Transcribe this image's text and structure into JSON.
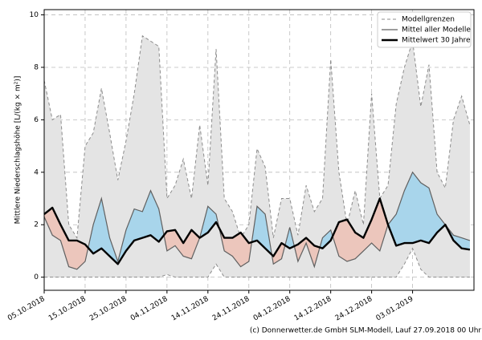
{
  "chart_data": {
    "type": "ensemble-band",
    "ylabel": "Mittlere Niederschlagshöhe [L/(kg × m²)]",
    "footer": "(c) Donnerwetter.de GmbH SLM-Modell, Lauf 27.09.2018 00 Uhr",
    "x": [
      "05.10.2018",
      "07.10.2018",
      "09.10.2018",
      "11.10.2018",
      "13.10.2018",
      "15.10.2018",
      "17.10.2018",
      "19.10.2018",
      "21.10.2018",
      "23.10.2018",
      "25.10.2018",
      "27.10.2018",
      "29.10.2018",
      "31.10.2018",
      "02.11.2018",
      "04.11.2018",
      "06.11.2018",
      "08.11.2018",
      "10.11.2018",
      "12.11.2018",
      "14.11.2018",
      "16.11.2018",
      "18.11.2018",
      "20.11.2018",
      "22.11.2018",
      "24.11.2018",
      "26.11.2018",
      "28.11.2018",
      "30.11.2018",
      "02.12.2018",
      "04.12.2018",
      "06.12.2018",
      "08.12.2018",
      "10.12.2018",
      "12.12.2018",
      "14.12.2018",
      "16.12.2018",
      "18.12.2018",
      "20.12.2018",
      "22.12.2018",
      "24.12.2018",
      "26.12.2018",
      "28.12.2018",
      "30.12.2018",
      "01.01.2019",
      "03.01.2019",
      "05.01.2019",
      "07.01.2019",
      "09.01.2019",
      "11.01.2019",
      "13.01.2019",
      "15.01.2019",
      "17.01.2019"
    ],
    "xlim": [
      "05.10.2018",
      "18.01.2019"
    ],
    "xticks": [
      "05.10.2018",
      "15.10.2018",
      "25.10.2018",
      "04.11.2018",
      "14.11.2018",
      "24.11.2018",
      "04.12.2018",
      "14.12.2018",
      "24.12.2018",
      "03.01.2019"
    ],
    "ylim": [
      -0.5,
      10.2
    ],
    "yticks": [
      0,
      2,
      4,
      6,
      8,
      10
    ],
    "grid": true,
    "legend": "upper right",
    "above_color": "#a8d5eb",
    "below_color": "#ecc6bc",
    "band_color": "#e4e4e4",
    "series": [
      {
        "name": "Modellgrenzen",
        "color": "#8c8c8c",
        "upper": [
          7.5,
          6.0,
          6.2,
          2.0,
          1.5,
          5.0,
          5.5,
          7.2,
          5.5,
          3.7,
          5.2,
          7.0,
          9.2,
          9.0,
          8.8,
          3.0,
          3.5,
          4.5,
          3.0,
          5.8,
          3.5,
          8.7,
          3.0,
          2.5,
          1.5,
          2.0,
          4.9,
          4.2,
          1.5,
          3.0,
          3.0,
          1.6,
          3.5,
          2.5,
          3.0,
          8.3,
          4.0,
          2.0,
          3.3,
          2.0,
          7.0,
          3.0,
          3.5,
          6.6,
          8.0,
          9.0,
          6.5,
          8.1,
          4.0,
          3.4,
          6.0,
          6.9,
          5.8
        ],
        "lower": [
          0,
          0,
          0,
          0,
          0,
          0,
          0,
          0,
          0,
          0,
          0,
          0,
          0,
          0,
          0,
          0.1,
          0,
          0,
          0,
          0,
          0,
          0.5,
          0,
          0,
          0,
          0,
          0,
          0,
          0,
          0,
          0,
          0,
          0,
          0,
          0,
          0,
          0,
          0,
          0,
          0,
          0,
          0,
          0,
          0,
          0.5,
          1.1,
          0.3,
          0,
          0,
          0,
          0,
          0,
          0
        ]
      },
      {
        "name": "Mittel aller Modelle",
        "color": "#606060",
        "values": [
          2.3,
          1.6,
          1.4,
          0.4,
          0.3,
          0.6,
          2.0,
          3.0,
          1.5,
          0.6,
          1.8,
          2.6,
          2.5,
          3.3,
          2.6,
          1.0,
          1.2,
          0.8,
          0.7,
          1.5,
          2.7,
          2.4,
          1.0,
          0.8,
          0.4,
          0.6,
          2.7,
          2.4,
          0.5,
          0.7,
          1.9,
          0.6,
          1.3,
          0.4,
          1.5,
          1.8,
          0.8,
          0.6,
          0.7,
          1.0,
          1.3,
          1.0,
          2.0,
          2.4,
          3.3,
          4.0,
          3.6,
          3.4,
          2.4,
          2.0,
          1.6,
          1.5,
          1.4
        ]
      },
      {
        "name": "Mittelwert 30 Jahre",
        "color": "#000000",
        "values": [
          2.4,
          2.65,
          2.0,
          1.4,
          1.4,
          1.25,
          0.9,
          1.1,
          0.8,
          0.5,
          1.0,
          1.4,
          1.5,
          1.6,
          1.35,
          1.75,
          1.8,
          1.3,
          1.8,
          1.5,
          1.7,
          2.1,
          1.5,
          1.5,
          1.7,
          1.3,
          1.4,
          1.1,
          0.8,
          1.3,
          1.1,
          1.25,
          1.5,
          1.2,
          1.1,
          1.4,
          2.1,
          2.2,
          1.7,
          1.5,
          2.2,
          3.0,
          2.0,
          1.2,
          1.3,
          1.3,
          1.4,
          1.3,
          1.7,
          2.0,
          1.4,
          1.1,
          1.05
        ]
      }
    ]
  }
}
